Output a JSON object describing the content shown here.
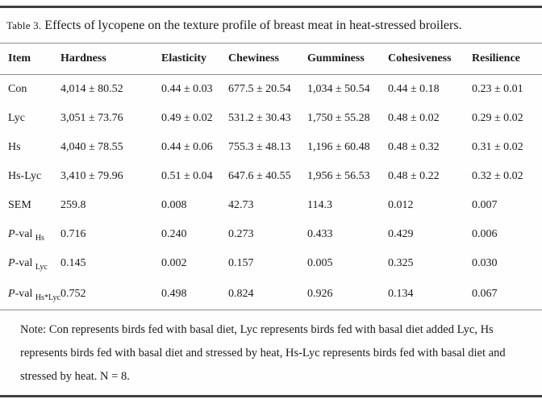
{
  "table": {
    "title_label": "Table 3.",
    "title_text": "Effects of lycopene on the texture profile of breast meat in heat-stressed broilers.",
    "columns": [
      "Item",
      "Hardness",
      "Elasticity",
      "Chewiness",
      "Gumminess",
      "Cohesiveness",
      "Resilience"
    ],
    "rows": [
      {
        "item": "Con",
        "values": [
          "4,014 ± 80.52",
          "0.44 ± 0.03",
          "677.5 ± 20.54",
          "1,034 ± 50.54",
          "0.44 ± 0.18",
          "0.23 ± 0.01"
        ]
      },
      {
        "item": "Lyc",
        "values": [
          "3,051 ± 73.76",
          "0.49 ± 0.02",
          "531.2 ± 30.43",
          "1,750 ± 55.28",
          "0.48 ± 0.02",
          "0.29 ± 0.02"
        ]
      },
      {
        "item": "Hs",
        "values": [
          "4,040 ± 78.55",
          "0.44 ± 0.06",
          "755.3 ± 48.13",
          "1,196 ± 60.48",
          "0.48 ± 0.32",
          "0.31 ± 0.02"
        ]
      },
      {
        "item": "Hs-Lyc",
        "values": [
          "3,410 ± 79.96",
          "0.51 ± 0.04",
          "647.6 ± 40.55",
          "1,956 ± 56.53",
          "0.48 ± 0.22",
          "0.32 ± 0.02"
        ]
      },
      {
        "item": "SEM",
        "values": [
          "259.8",
          "0.008",
          "42.73",
          "114.3",
          "0.012",
          "0.007"
        ]
      },
      {
        "item": "P-val",
        "item_italic_first": true,
        "item_sub": "Hs",
        "values": [
          "0.716",
          "0.240",
          "0.273",
          "0.433",
          "0.429",
          "0.006"
        ]
      },
      {
        "item": "P-val",
        "item_italic_first": true,
        "item_sub": "Lyc",
        "values": [
          "0.145",
          "0.002",
          "0.157",
          "0.005",
          "0.325",
          "0.030"
        ]
      },
      {
        "item": "P-val",
        "item_italic_first": true,
        "item_sub": "Hs*Lyc",
        "values": [
          "0.752",
          "0.498",
          "0.824",
          "0.926",
          "0.134",
          "0.067"
        ]
      }
    ],
    "note": "Note: Con represents birds fed with basal diet, Lyc represents birds fed with basal diet added Lyc, Hs represents birds fed with basal diet and stressed by heat, Hs-Lyc represents birds fed with basal diet and stressed by heat. N = 8.",
    "colors": {
      "thick_rule": "#3f3f3f",
      "thin_rule": "#8c8c8c",
      "text": "#1b1b1b",
      "background": "#fefefe"
    }
  }
}
